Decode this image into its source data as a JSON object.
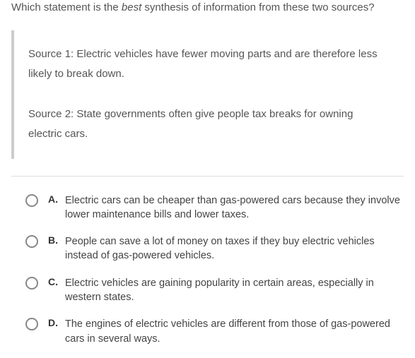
{
  "question": {
    "prefix": "Which statement is the ",
    "emphasis": "best",
    "suffix": " synthesis of information from these two sources?"
  },
  "sources": [
    "Source 1: Electric vehicles have fewer moving parts and are therefore less likely to break down.",
    "Source 2: State governments often give people tax breaks for owning electric cars."
  ],
  "options": [
    {
      "letter": "A.",
      "text": "Electric cars can be cheaper than gas-powered cars because they involve lower maintenance bills and lower taxes."
    },
    {
      "letter": "B.",
      "text": "People can save a lot of money on taxes if they buy electric vehicles instead of gas-powered vehicles."
    },
    {
      "letter": "C.",
      "text": "Electric vehicles are gaining popularity in certain areas, especially in western states."
    },
    {
      "letter": "D.",
      "text": "The engines of electric vehicles are different from those of gas-powered cars in several ways."
    }
  ]
}
